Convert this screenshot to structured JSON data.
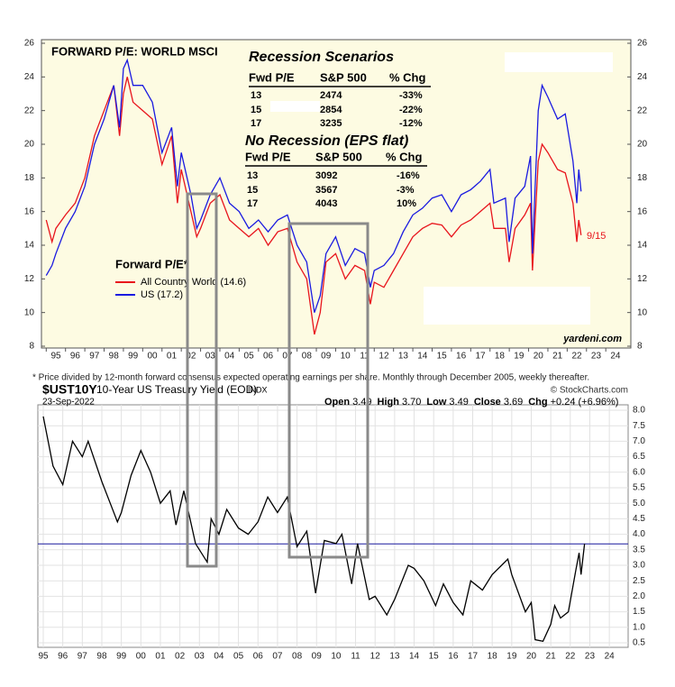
{
  "chart_data": [
    {
      "type": "line",
      "title": "FORWARD P/E: WORLD MSCI",
      "legend_title": "Forward P/E*",
      "x": [
        1995.0,
        1995.3,
        1995.5,
        1996,
        1996.5,
        1997,
        1997.5,
        1998,
        1998.5,
        1998.8,
        1999,
        1999.2,
        1999.5,
        2000,
        2000.5,
        2001,
        2001.5,
        2001.8,
        2002,
        2002.5,
        2002.8,
        2003,
        2003.5,
        2004,
        2004.5,
        2005,
        2005.5,
        2006,
        2006.5,
        2007,
        2007.5,
        2008,
        2008.5,
        2008.9,
        2009.2,
        2009.5,
        2010,
        2010.5,
        2011,
        2011.5,
        2011.8,
        2012,
        2012.5,
        2013,
        2013.5,
        2014,
        2014.5,
        2015,
        2015.5,
        2016,
        2016.5,
        2017,
        2017.5,
        2018,
        2018.2,
        2018.8,
        2018.99,
        2019.3,
        2019.8,
        2020.1,
        2020.2,
        2020.5,
        2020.7,
        2021,
        2021.5,
        2021.9,
        2022.3,
        2022.5,
        2022.6,
        2022.72
      ],
      "series": [
        {
          "name": "All Country World (14.6)",
          "color": "#e8141c",
          "values": [
            15.5,
            14.2,
            15,
            15.8,
            16.5,
            18,
            20.5,
            22,
            23.5,
            20.5,
            23,
            24,
            22.5,
            22,
            21.5,
            18.8,
            20.5,
            16.5,
            18.5,
            16,
            14.5,
            15,
            16.5,
            17,
            15.5,
            15,
            14.5,
            15,
            14,
            14.8,
            15,
            13,
            12,
            8.7,
            10,
            13,
            13.5,
            12,
            12.8,
            12.5,
            10.5,
            11.8,
            11.5,
            12.5,
            13.5,
            14.5,
            15,
            15.3,
            15.2,
            14.5,
            15.2,
            15.5,
            16,
            16.5,
            15,
            15,
            13,
            15,
            15.8,
            16.5,
            12.5,
            19,
            20,
            19.5,
            18.5,
            18.3,
            16.5,
            14.2,
            15.5,
            14.6
          ]
        },
        {
          "name": "US (17.2)",
          "color": "#1a1ae0",
          "values": [
            12.2,
            12.8,
            13.5,
            15,
            16,
            17.5,
            20,
            21.5,
            23.5,
            21,
            24.5,
            25,
            23.5,
            23.5,
            22.5,
            19.5,
            21,
            17.5,
            19.5,
            17,
            15,
            15.5,
            17,
            18,
            16.5,
            16,
            15,
            15.5,
            14.8,
            15.5,
            15.8,
            14,
            13,
            10,
            11,
            13.5,
            14.5,
            12.8,
            13.8,
            13.5,
            11.5,
            12.5,
            12.8,
            13.5,
            14.8,
            15.8,
            16.2,
            16.8,
            17,
            16,
            17,
            17.3,
            17.8,
            18.5,
            16.5,
            16.8,
            14.2,
            16.8,
            17.5,
            19.3,
            13.5,
            22,
            23.5,
            22.8,
            21.5,
            21.8,
            19,
            16.5,
            18.5,
            17.2
          ]
        }
      ],
      "xlim": [
        1994.75,
        2025.3
      ],
      "ylim": [
        8,
        26
      ],
      "xticks": [
        {
          "value": 1995,
          "label": "95"
        },
        {
          "value": 1996,
          "label": "96"
        },
        {
          "value": 1997,
          "label": "97"
        },
        {
          "value": 1998,
          "label": "98"
        },
        {
          "value": 1999,
          "label": "99"
        },
        {
          "value": 2000,
          "label": "00"
        },
        {
          "value": 2001,
          "label": "01"
        },
        {
          "value": 2002,
          "label": "02"
        },
        {
          "value": 2003,
          "label": "03"
        },
        {
          "value": 2004,
          "label": "04"
        },
        {
          "value": 2005,
          "label": "05"
        },
        {
          "value": 2006,
          "label": "06"
        },
        {
          "value": 2007,
          "label": "07"
        },
        {
          "value": 2008,
          "label": "08"
        },
        {
          "value": 2009,
          "label": "09"
        },
        {
          "value": 2010,
          "label": "10"
        },
        {
          "value": 2011,
          "label": "11"
        },
        {
          "value": 2012,
          "label": "12"
        },
        {
          "value": 2013,
          "label": "13"
        },
        {
          "value": 2014,
          "label": "14"
        },
        {
          "value": 2015,
          "label": "15"
        },
        {
          "value": 2016,
          "label": "16"
        },
        {
          "value": 2017,
          "label": "17"
        },
        {
          "value": 2018,
          "label": "18"
        },
        {
          "value": 2019,
          "label": "19"
        },
        {
          "value": 2020,
          "label": "20"
        },
        {
          "value": 2021,
          "label": "21"
        },
        {
          "value": 2022,
          "label": "22"
        },
        {
          "value": 2023,
          "label": "23"
        },
        {
          "value": 2024,
          "label": "24"
        }
      ],
      "yticks": [
        8,
        10,
        12,
        14,
        16,
        18,
        20,
        22,
        24,
        26
      ],
      "annotation": "9/15",
      "source": "yardeni.com",
      "note": "*  Price divided by 12-month forward consensus expected operating earnings per share. Monthly through December 2005, weekly thereafter.",
      "tables": [
        {
          "title": "Recession Scenarios",
          "header": [
            "Fwd P/E",
            "S&P 500",
            "% Chg"
          ],
          "rows": [
            [
              "13",
              "2474",
              "-33%"
            ],
            [
              "15",
              "2854",
              "-22%"
            ],
            [
              "17",
              "3235",
              "-12%"
            ]
          ]
        },
        {
          "title": "No Recession (EPS flat)",
          "header": [
            "Fwd P/E",
            "S&P 500",
            "% Chg"
          ],
          "rows": [
            [
              "13",
              "3092",
              "-16%"
            ],
            [
              "15",
              "3567",
              "-3%"
            ],
            [
              "17",
              "4043",
              "10%"
            ]
          ]
        }
      ]
    },
    {
      "type": "line",
      "symbol": "$UST10Y",
      "title": "10-Year US Treasury Yield (EOD)",
      "exchange": "INDX",
      "source": "© StockCharts.com",
      "date": "23-Sep-2022",
      "quote": [
        {
          "name": "Open",
          "value": 3.49
        },
        {
          "name": "High",
          "value": 3.7,
          "label": "3.70"
        },
        {
          "name": "Low",
          "value": 3.49
        },
        {
          "name": "Close",
          "value": 3.69
        },
        {
          "name": "Chg",
          "label": "+0.24 (+6.96%)"
        }
      ],
      "x": [
        1995.0,
        1995.5,
        1996,
        1996.5,
        1997,
        1997.3,
        1998,
        1998.8,
        1999,
        1999.5,
        2000,
        2000.5,
        2001,
        2001.5,
        2001.8,
        2002.2,
        2002.8,
        2003.4,
        2003.6,
        2004,
        2004.4,
        2005,
        2005.5,
        2006,
        2006.5,
        2007,
        2007.5,
        2008,
        2008.5,
        2008.95,
        2009.4,
        2010,
        2010.3,
        2010.8,
        2011.1,
        2011.7,
        2012,
        2012.6,
        2013,
        2013.7,
        2014,
        2014.5,
        2015.1,
        2015.5,
        2016,
        2016.5,
        2016.9,
        2017.5,
        2018,
        2018.8,
        2019,
        2019.7,
        2020,
        2020.2,
        2020.6,
        2021,
        2021.2,
        2021.5,
        2021.9,
        2022.3,
        2022.45,
        2022.55,
        2022.73
      ],
      "series": [
        {
          "name": "$UST10Y",
          "color": "#000000",
          "values": [
            7.8,
            6.2,
            5.6,
            7.0,
            6.5,
            7.0,
            5.7,
            4.4,
            4.7,
            5.9,
            6.7,
            6.0,
            5.0,
            5.4,
            4.3,
            5.4,
            3.7,
            3.1,
            4.5,
            4.0,
            4.8,
            4.2,
            4.0,
            4.4,
            5.2,
            4.7,
            5.2,
            3.6,
            4.1,
            2.1,
            3.8,
            3.7,
            4.0,
            2.4,
            3.7,
            1.9,
            2.0,
            1.4,
            1.9,
            3.0,
            2.9,
            2.5,
            1.7,
            2.4,
            1.8,
            1.4,
            2.5,
            2.2,
            2.7,
            3.2,
            2.7,
            1.5,
            1.8,
            0.6,
            0.55,
            1.1,
            1.7,
            1.3,
            1.5,
            2.9,
            3.4,
            2.7,
            3.69
          ]
        }
      ],
      "xlim": [
        1994.72,
        2024.96
      ],
      "ylim": [
        0.2,
        8.25
      ],
      "grid": true,
      "xticks": [
        {
          "value": 1995,
          "label": "95"
        },
        {
          "value": 1996,
          "label": "96"
        },
        {
          "value": 1997,
          "label": "97"
        },
        {
          "value": 1998,
          "label": "98"
        },
        {
          "value": 1999,
          "label": "99"
        },
        {
          "value": 2000,
          "label": "00"
        },
        {
          "value": 2001,
          "label": "01"
        },
        {
          "value": 2002,
          "label": "02"
        },
        {
          "value": 2003,
          "label": "03"
        },
        {
          "value": 2004,
          "label": "04"
        },
        {
          "value": 2005,
          "label": "05"
        },
        {
          "value": 2006,
          "label": "06"
        },
        {
          "value": 2007,
          "label": "07"
        },
        {
          "value": 2008,
          "label": "08"
        },
        {
          "value": 2009,
          "label": "09"
        },
        {
          "value": 2010,
          "label": "10"
        },
        {
          "value": 2011,
          "label": "11"
        },
        {
          "value": 2012,
          "label": "12"
        },
        {
          "value": 2013,
          "label": "13"
        },
        {
          "value": 2014,
          "label": "14"
        },
        {
          "value": 2015,
          "label": "15"
        },
        {
          "value": 2016,
          "label": "16"
        },
        {
          "value": 2017,
          "label": "17"
        },
        {
          "value": 2018,
          "label": "18"
        },
        {
          "value": 2019,
          "label": "19"
        },
        {
          "value": 2020,
          "label": "20"
        },
        {
          "value": 2021,
          "label": "21"
        },
        {
          "value": 2022,
          "label": "22"
        },
        {
          "value": 2023,
          "label": "23"
        },
        {
          "value": 2024,
          "label": "24"
        }
      ],
      "yticks": [
        0.5,
        {
          "value": 1,
          "label": "1.0"
        },
        1.5,
        {
          "value": 2,
          "label": "2.0"
        },
        2.5,
        {
          "value": 3,
          "label": "3.0"
        },
        3.5,
        {
          "value": 4,
          "label": "4.0"
        },
        4.5,
        {
          "value": 5,
          "label": "5.0"
        },
        5.5,
        {
          "value": 6,
          "label": "6.0"
        },
        6.5,
        {
          "value": 7,
          "label": "7.0"
        },
        7.5,
        {
          "value": 8,
          "label": "8.0"
        }
      ]
    }
  ]
}
